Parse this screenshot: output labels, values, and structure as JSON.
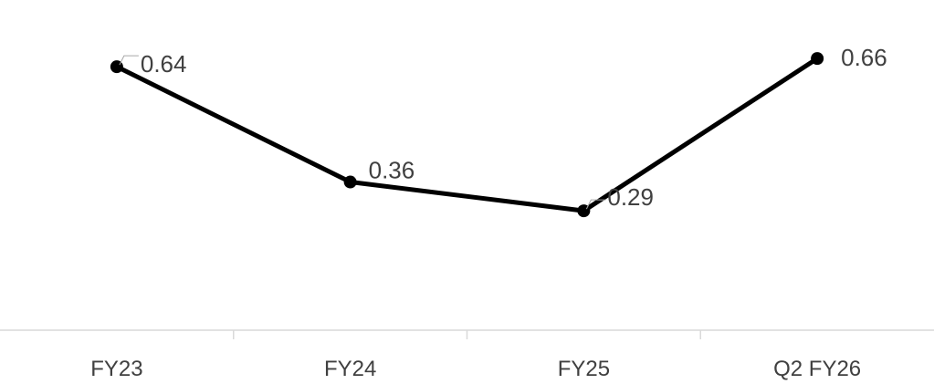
{
  "chart_data": {
    "type": "line",
    "title": "",
    "xlabel": "",
    "ylabel": "",
    "categories": [
      "FY23",
      "FY24",
      "FY25",
      "Q2 FY26"
    ],
    "series": [
      {
        "values": [
          0.64,
          0.36,
          0.29,
          0.66
        ],
        "labels": [
          "0.64",
          "0.36",
          "0.29",
          "0.66"
        ],
        "color": "#000000"
      }
    ],
    "ylim": [
      0,
      0.75
    ],
    "grid": false,
    "legend": "none",
    "data_labels": true
  }
}
